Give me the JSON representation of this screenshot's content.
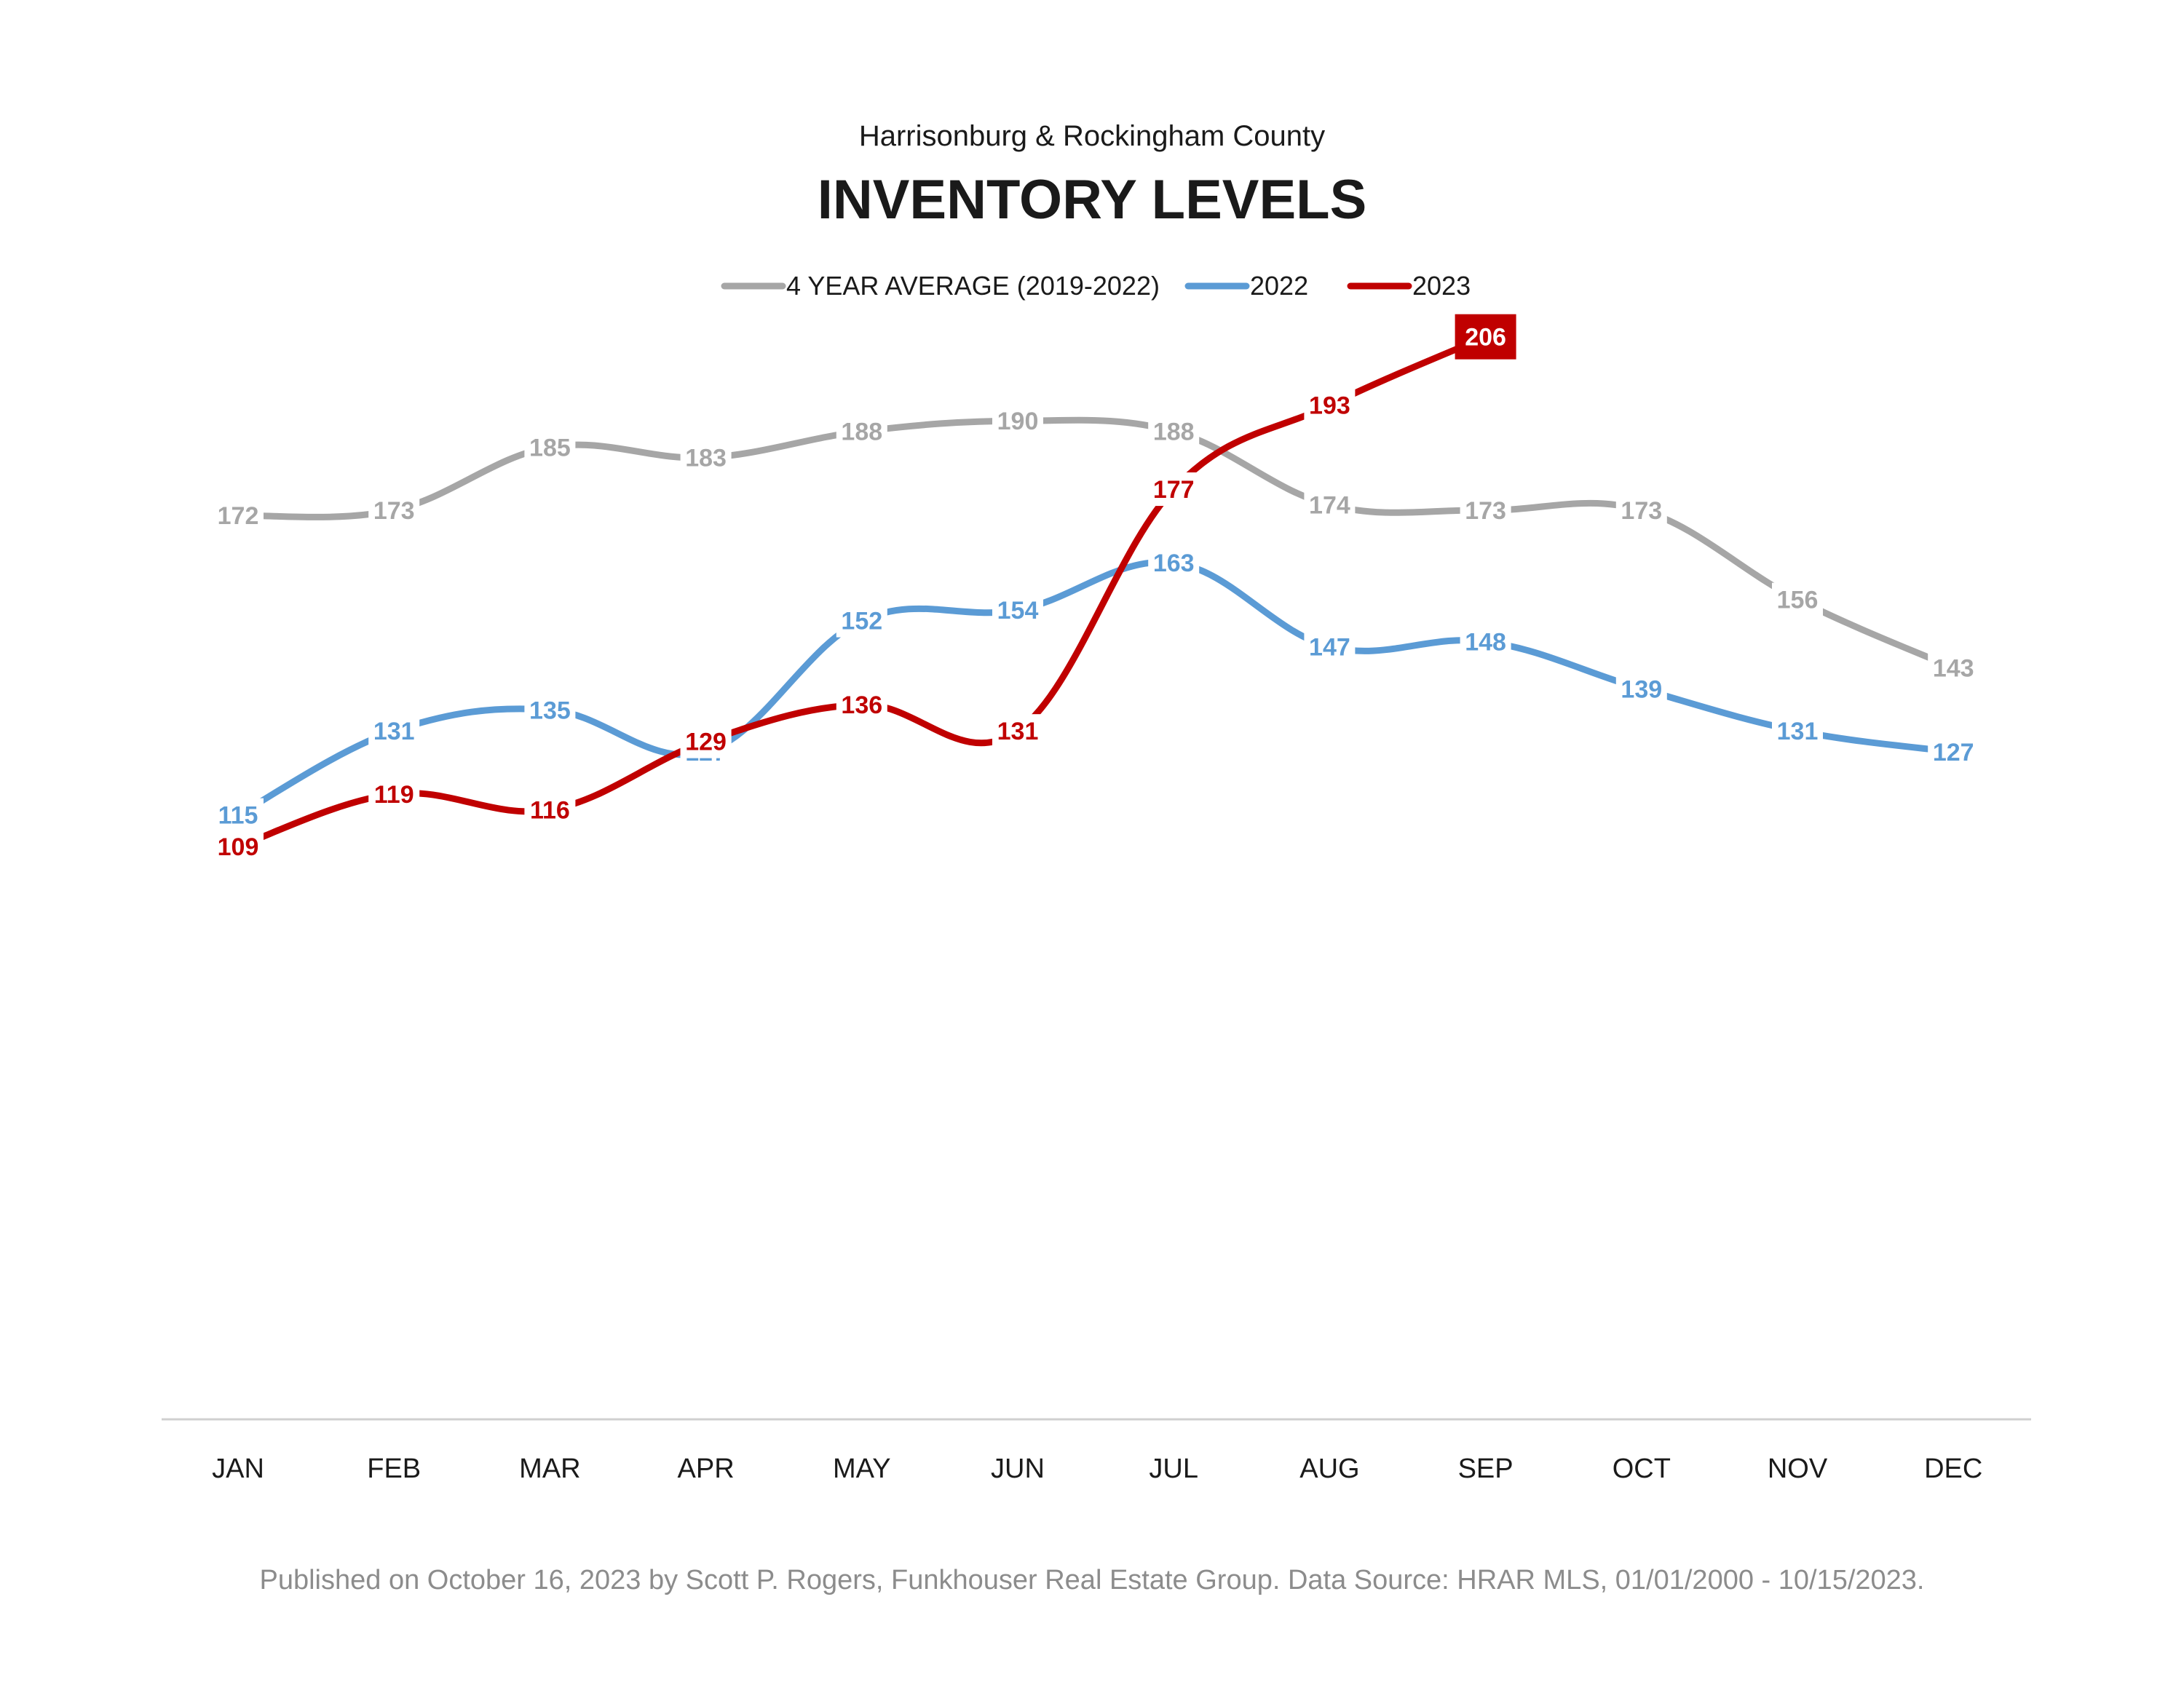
{
  "chart_data": {
    "type": "line",
    "subtitle": "Harrisonburg & Rockingham County",
    "title": "INVENTORY LEVELS",
    "categories": [
      "JAN",
      "FEB",
      "MAR",
      "APR",
      "MAY",
      "JUN",
      "JUL",
      "AUG",
      "SEP",
      "OCT",
      "NOV",
      "DEC"
    ],
    "series": [
      {
        "name": "4 YEAR AVERAGE (2019-2022)",
        "color": "#a6a6a6",
        "values": [
          172,
          173,
          185,
          183,
          188,
          190,
          188,
          174,
          173,
          173,
          156,
          143
        ]
      },
      {
        "name": "2022",
        "color": "#5b9bd5",
        "values": [
          115,
          131,
          135,
          127,
          152,
          154,
          163,
          147,
          148,
          139,
          131,
          127
        ]
      },
      {
        "name": "2023",
        "color": "#c00000",
        "values": [
          109,
          119,
          116,
          129,
          136,
          131,
          177,
          193,
          206,
          null,
          null,
          null
        ],
        "highlight_last": true
      }
    ],
    "legend": "top-center",
    "grid": false,
    "ylim": [
      0,
      250
    ]
  },
  "footer": "Published on October 16, 2023 by Scott P. Rogers, Funkhouser Real Estate Group. Data Source: HRAR MLS, 01/01/2000 - 10/15/2023."
}
